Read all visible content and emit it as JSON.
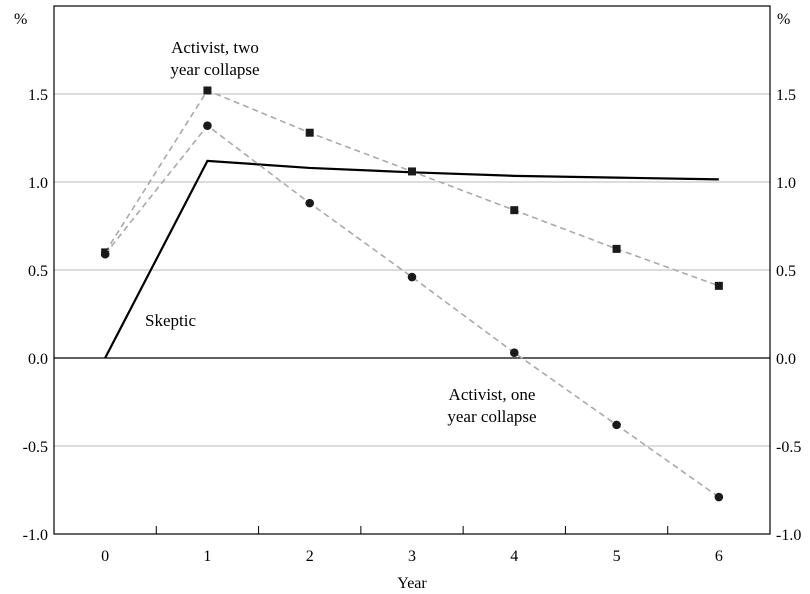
{
  "chart_data": {
    "type": "line",
    "unit_left": "%",
    "unit_right": "%",
    "xlabel": "Year",
    "x": [
      0,
      1,
      2,
      3,
      4,
      5,
      6
    ],
    "x_tick_labels": [
      "0",
      "1",
      "2",
      "3",
      "4",
      "5",
      "6"
    ],
    "ylim": [
      -1.0,
      2.0
    ],
    "xlim": [
      -0.5,
      6.5
    ],
    "y_ticks": [
      -1.0,
      -0.5,
      0.0,
      0.5,
      1.0,
      1.5
    ],
    "y_tick_labels": [
      "-1.0",
      "-0.5",
      "0.0",
      "0.5",
      "1.0",
      "1.5"
    ],
    "grid": true,
    "series": [
      {
        "name": "Skeptic",
        "style": "solid",
        "marker": "none",
        "color": "#000000",
        "x": [
          0,
          1,
          2,
          3,
          4,
          5,
          6
        ],
        "values": [
          0.0,
          1.12,
          1.08,
          1.055,
          1.035,
          1.025,
          1.015
        ]
      },
      {
        "name": "Activist, two year collapse",
        "style": "dashed",
        "marker": "square",
        "color": "#aaaaaa",
        "marker_color": "#1a1a1a",
        "x": [
          0,
          1,
          2,
          3,
          4,
          5,
          6
        ],
        "values": [
          0.6,
          1.52,
          1.28,
          1.06,
          0.84,
          0.62,
          0.41
        ]
      },
      {
        "name": "Activist, one year collapse",
        "style": "dashed",
        "marker": "circle",
        "color": "#aaaaaa",
        "marker_color": "#1a1a1a",
        "x": [
          0,
          1,
          2,
          3,
          4,
          5,
          6
        ],
        "values": [
          0.59,
          1.32,
          0.88,
          0.46,
          0.03,
          -0.38,
          -0.79
        ]
      }
    ],
    "annotations": {
      "two_year_line1": "Activist, two",
      "two_year_line2": "year collapse",
      "skeptic": "Skeptic",
      "one_year_line1": "Activist, one",
      "one_year_line2": "year collapse"
    }
  }
}
